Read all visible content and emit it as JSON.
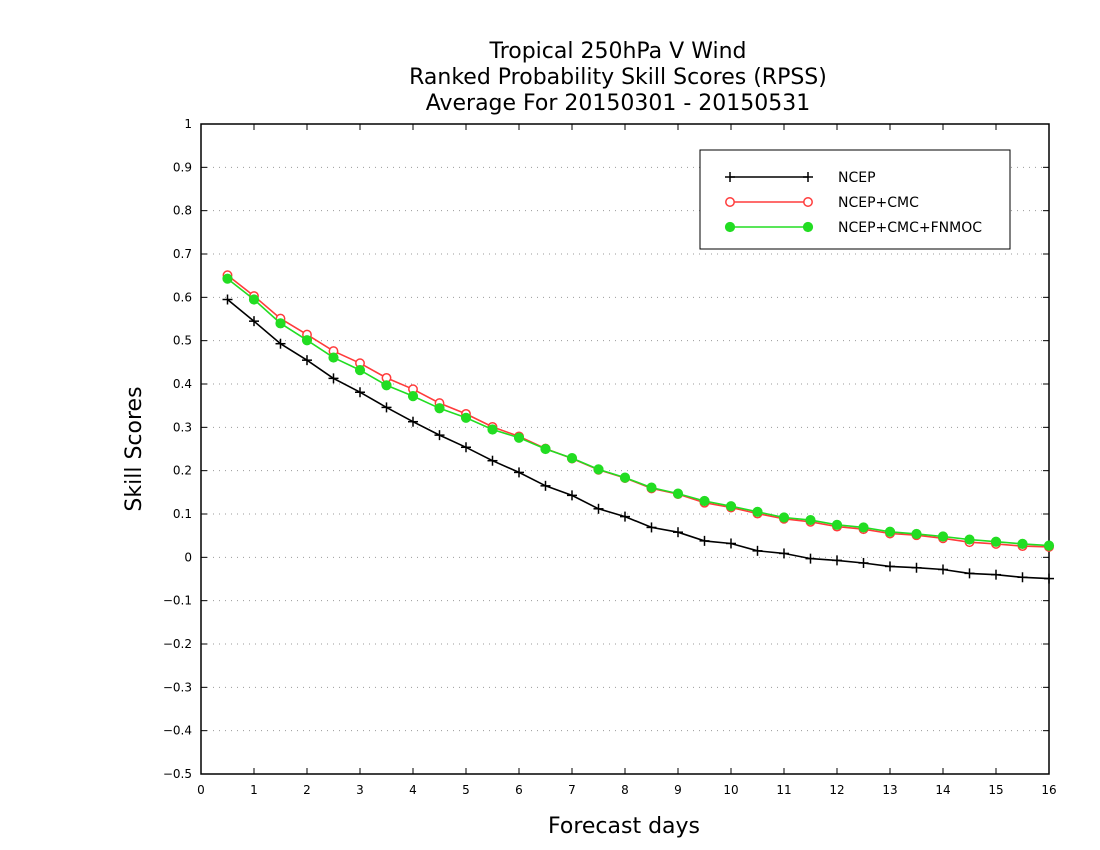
{
  "chart_data": {
    "type": "line",
    "title_lines": [
      "Tropical 250hPa V Wind",
      "Ranked Probability Skill Scores (RPSS)",
      "Average For 20150301 - 20150531"
    ],
    "xlabel": "Forecast days",
    "ylabel": "Skill Scores",
    "xlim": [
      0,
      16
    ],
    "ylim": [
      -0.5,
      1
    ],
    "x_ticks": [
      0,
      1,
      2,
      3,
      4,
      5,
      6,
      7,
      8,
      9,
      10,
      11,
      12,
      13,
      14,
      15,
      16
    ],
    "x_tick_labels": [
      "0",
      "1",
      "2",
      "3",
      "4",
      "5",
      "6",
      "7",
      "8",
      "9",
      "10",
      "11",
      "12",
      "13",
      "14",
      "15",
      "16"
    ],
    "y_ticks": [
      -0.5,
      -0.4,
      -0.3,
      -0.2,
      -0.1,
      0,
      0.1,
      0.2,
      0.3,
      0.4,
      0.5,
      0.6,
      0.7,
      0.8,
      0.9,
      1
    ],
    "y_tick_labels": [
      "−0.5",
      "−0.4",
      "−0.3",
      "−0.2",
      "−0.1",
      "0",
      "0.1",
      "0.2",
      "0.3",
      "0.4",
      "0.5",
      "0.6",
      "0.7",
      "0.8",
      "0.9",
      "1"
    ],
    "grid": "horizontal dotted",
    "legend_position": "top-right",
    "x": [
      0.5,
      1,
      1.5,
      2,
      2.5,
      3,
      3.5,
      4,
      4.5,
      5,
      5.5,
      6,
      6.5,
      7,
      7.5,
      8,
      8.5,
      9,
      9.5,
      10,
      10.5,
      11,
      11.5,
      12,
      12.5,
      13,
      13.5,
      14,
      14.5,
      15,
      15.5,
      16
    ],
    "series": [
      {
        "name": "NCEP",
        "color": "#000000",
        "marker": "plus",
        "values": [
          0.595,
          0.545,
          0.493,
          0.455,
          0.413,
          0.381,
          0.346,
          0.313,
          0.282,
          0.254,
          0.223,
          0.196,
          0.165,
          0.143,
          0.112,
          0.094,
          0.069,
          0.058,
          0.038,
          0.032,
          0.015,
          0.009,
          -0.003,
          -0.007,
          -0.013,
          -0.021,
          -0.024,
          -0.028,
          -0.037,
          -0.04,
          -0.046,
          -0.049
        ]
      },
      {
        "name": "NCEP+CMC",
        "color": "#ff3b3b",
        "marker": "open-circle",
        "values": [
          0.651,
          0.603,
          0.551,
          0.514,
          0.476,
          0.448,
          0.414,
          0.388,
          0.356,
          0.331,
          0.301,
          0.279,
          0.251,
          0.228,
          0.202,
          0.183,
          0.159,
          0.146,
          0.126,
          0.115,
          0.101,
          0.089,
          0.082,
          0.071,
          0.065,
          0.055,
          0.051,
          0.044,
          0.035,
          0.031,
          0.026,
          0.024
        ]
      },
      {
        "name": "NCEP+CMC+FNMOC",
        "color": "#22dd22",
        "marker": "filled-circle",
        "values": [
          0.643,
          0.595,
          0.54,
          0.501,
          0.461,
          0.432,
          0.397,
          0.372,
          0.344,
          0.322,
          0.295,
          0.276,
          0.25,
          0.229,
          0.203,
          0.184,
          0.161,
          0.147,
          0.13,
          0.118,
          0.105,
          0.092,
          0.086,
          0.075,
          0.069,
          0.059,
          0.054,
          0.048,
          0.041,
          0.036,
          0.031,
          0.027
        ]
      }
    ]
  }
}
